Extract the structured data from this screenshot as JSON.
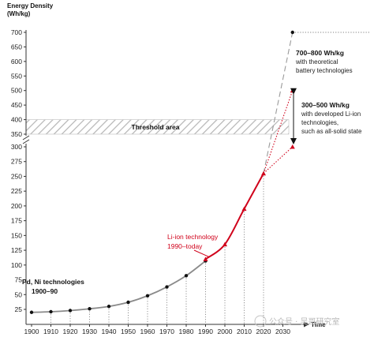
{
  "chart_data": {
    "type": "line",
    "ylabel": "Energy Density",
    "yunit": "(Wh/kg)",
    "xlabel": "Time",
    "x_ticks": [
      1900,
      1910,
      1920,
      1930,
      1940,
      1950,
      1960,
      1970,
      1980,
      1990,
      2000,
      2010,
      2020,
      2030
    ],
    "y_ticks_lower": [
      25,
      50,
      75,
      100,
      125,
      150,
      175,
      200,
      225,
      250,
      275,
      300
    ],
    "y_ticks_upper": [
      350,
      400,
      450,
      500,
      550,
      600,
      650,
      700
    ],
    "axis_break": "300-350",
    "threshold_band": {
      "label": "Threshold area",
      "ymin": 350,
      "ymax": 400
    },
    "series": [
      {
        "name": "Pd, Ni technologies",
        "period": "1900–90",
        "color": "#8a8a8a",
        "x": [
          1900,
          1910,
          1920,
          1930,
          1940,
          1950,
          1960,
          1970,
          1980,
          1990
        ],
        "y": [
          20,
          21,
          23,
          26,
          30,
          37,
          48,
          63,
          82,
          107
        ]
      },
      {
        "name": "Li-ion technology",
        "period": "1990–today",
        "color": "#d0021b",
        "x": [
          1990,
          2000,
          2010,
          2020
        ],
        "y": [
          110,
          135,
          195,
          255
        ]
      }
    ],
    "projections": [
      {
        "kind": "theoretical",
        "color": "#9a9a9a",
        "from": [
          2020,
          255
        ],
        "to": [
          2035,
          700
        ]
      },
      {
        "kind": "developed-upper",
        "color": "#d0021b",
        "from": [
          2020,
          255
        ],
        "to": [
          2035,
          500
        ]
      },
      {
        "kind": "developed-lower",
        "color": "#d0021b",
        "from": [
          2020,
          255
        ],
        "to": [
          2035,
          300
        ]
      }
    ],
    "annotations": {
      "theoretical": {
        "title": "700–800 Wh/kg",
        "lines": [
          "with theoretical",
          "battery technologies"
        ]
      },
      "developed": {
        "title": "300–500 Wh/kg",
        "lines": [
          "with developed Li-ion",
          "technologies,",
          "such as all-solid state"
        ]
      }
    }
  },
  "watermark": "公众号 · 吴哥研究室"
}
